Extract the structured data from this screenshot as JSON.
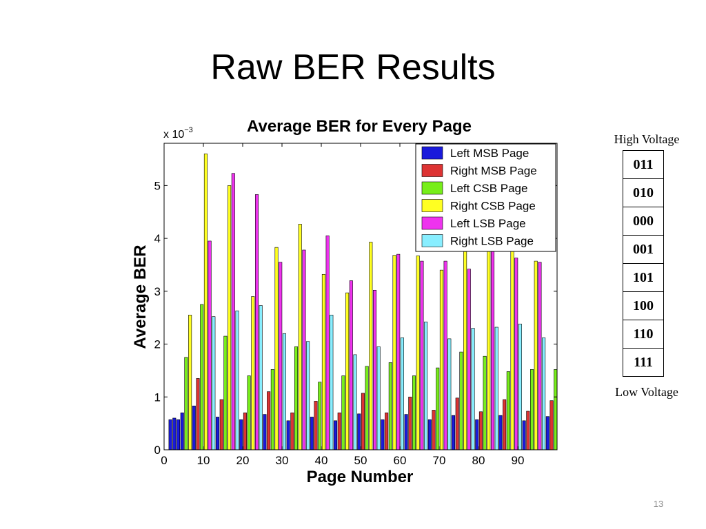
{
  "slide": {
    "title": "Raw BER Results",
    "page_number": "13"
  },
  "voltage_table": {
    "top_label": "High Voltage",
    "bottom_label": "Low Voltage",
    "states": [
      "011",
      "010",
      "000",
      "001",
      "101",
      "100",
      "110",
      "111"
    ]
  },
  "chart_data": {
    "type": "bar",
    "title": "Average BER for Every Page",
    "xlabel": "Page Number",
    "ylabel": "Average BER",
    "scale_label": "x 10",
    "scale_exponent": "−3",
    "xlim": [
      0,
      100
    ],
    "ylim": [
      0,
      5.8
    ],
    "xticks": [
      "0",
      "10",
      "20",
      "30",
      "40",
      "50",
      "60",
      "70",
      "80",
      "90"
    ],
    "yticks": [
      "0",
      "1",
      "2",
      "3",
      "4",
      "5"
    ],
    "grid": false,
    "legend_position": "top-right",
    "series": [
      {
        "name": "Left MSB Page",
        "color": "#1a1adb"
      },
      {
        "name": "Right MSB Page",
        "color": "#dd3333"
      },
      {
        "name": "Left CSB Page",
        "color": "#77ee1a"
      },
      {
        "name": "Right CSB Page",
        "color": "#ffff22"
      },
      {
        "name": "Left LSB Page",
        "color": "#ee33ee"
      },
      {
        "name": "Right LSB Page",
        "color": "#88eeff"
      }
    ],
    "bars": [
      [
        1.6,
        0.57,
        0
      ],
      [
        2.6,
        0.6,
        0
      ],
      [
        3.6,
        0.57,
        0
      ],
      [
        4.6,
        0.7,
        0
      ],
      [
        5.6,
        1.75,
        2
      ],
      [
        6.6,
        2.55,
        3
      ],
      [
        7.6,
        0.83,
        0
      ],
      [
        8.6,
        1.35,
        1
      ],
      [
        9.6,
        2.75,
        2
      ],
      [
        10.6,
        5.6,
        3
      ],
      [
        11.6,
        3.95,
        4
      ],
      [
        12.6,
        2.52,
        5
      ],
      [
        13.6,
        0.62,
        0
      ],
      [
        14.6,
        0.95,
        1
      ],
      [
        15.6,
        2.15,
        2
      ],
      [
        16.6,
        5.0,
        3
      ],
      [
        17.6,
        5.23,
        4
      ],
      [
        18.6,
        2.63,
        5
      ],
      [
        19.6,
        0.57,
        0
      ],
      [
        20.6,
        0.7,
        1
      ],
      [
        21.6,
        1.4,
        2
      ],
      [
        22.6,
        2.9,
        3
      ],
      [
        23.6,
        4.83,
        4
      ],
      [
        24.6,
        2.73,
        5
      ],
      [
        25.6,
        0.67,
        0
      ],
      [
        26.6,
        1.1,
        1
      ],
      [
        27.6,
        1.52,
        2
      ],
      [
        28.6,
        3.83,
        3
      ],
      [
        29.6,
        3.55,
        4
      ],
      [
        30.6,
        2.2,
        5
      ],
      [
        31.6,
        0.55,
        0
      ],
      [
        32.6,
        0.7,
        1
      ],
      [
        33.6,
        1.95,
        2
      ],
      [
        34.6,
        4.27,
        3
      ],
      [
        35.6,
        3.78,
        4
      ],
      [
        36.6,
        2.05,
        5
      ],
      [
        37.6,
        0.62,
        0
      ],
      [
        38.6,
        0.92,
        1
      ],
      [
        39.6,
        1.28,
        2
      ],
      [
        40.6,
        3.32,
        3
      ],
      [
        41.6,
        4.05,
        4
      ],
      [
        42.6,
        2.55,
        5
      ],
      [
        43.6,
        0.55,
        0
      ],
      [
        44.6,
        0.7,
        1
      ],
      [
        45.6,
        1.4,
        2
      ],
      [
        46.6,
        2.97,
        3
      ],
      [
        47.6,
        3.2,
        4
      ],
      [
        48.6,
        1.8,
        5
      ],
      [
        49.6,
        0.68,
        0
      ],
      [
        50.6,
        1.07,
        1
      ],
      [
        51.6,
        1.58,
        2
      ],
      [
        52.6,
        3.93,
        3
      ],
      [
        53.6,
        3.02,
        4
      ],
      [
        54.6,
        1.95,
        5
      ],
      [
        55.6,
        0.57,
        0
      ],
      [
        56.6,
        0.7,
        1
      ],
      [
        57.6,
        1.65,
        2
      ],
      [
        58.6,
        3.68,
        3
      ],
      [
        59.6,
        3.7,
        4
      ],
      [
        60.6,
        2.12,
        5
      ],
      [
        61.6,
        0.67,
        0
      ],
      [
        62.6,
        1.0,
        1
      ],
      [
        63.6,
        1.4,
        2
      ],
      [
        64.6,
        3.67,
        3
      ],
      [
        65.6,
        3.57,
        4
      ],
      [
        66.6,
        2.42,
        5
      ],
      [
        67.6,
        0.57,
        0
      ],
      [
        68.6,
        0.75,
        1
      ],
      [
        69.6,
        1.55,
        2
      ],
      [
        70.6,
        3.4,
        3
      ],
      [
        71.6,
        3.57,
        4
      ],
      [
        72.6,
        2.1,
        5
      ],
      [
        73.6,
        0.65,
        0
      ],
      [
        74.6,
        0.98,
        1
      ],
      [
        75.6,
        1.85,
        2
      ],
      [
        76.6,
        3.75,
        3
      ],
      [
        77.6,
        3.42,
        4
      ],
      [
        78.6,
        2.3,
        5
      ],
      [
        79.6,
        0.57,
        0
      ],
      [
        80.6,
        0.72,
        1
      ],
      [
        81.6,
        1.77,
        2
      ],
      [
        82.6,
        3.9,
        3
      ],
      [
        83.6,
        3.75,
        4
      ],
      [
        84.6,
        2.32,
        5
      ],
      [
        85.6,
        0.65,
        0
      ],
      [
        86.6,
        0.95,
        1
      ],
      [
        87.6,
        1.48,
        2
      ],
      [
        88.6,
        3.8,
        3
      ],
      [
        89.6,
        3.63,
        4
      ],
      [
        90.6,
        2.38,
        5
      ],
      [
        91.6,
        0.55,
        0
      ],
      [
        92.6,
        0.73,
        1
      ],
      [
        93.6,
        1.52,
        2
      ],
      [
        94.6,
        3.57,
        3
      ],
      [
        95.6,
        3.55,
        4
      ],
      [
        96.6,
        2.12,
        5
      ],
      [
        97.6,
        0.63,
        0
      ],
      [
        98.6,
        0.93,
        1
      ],
      [
        99.6,
        1.52,
        2
      ]
    ]
  }
}
